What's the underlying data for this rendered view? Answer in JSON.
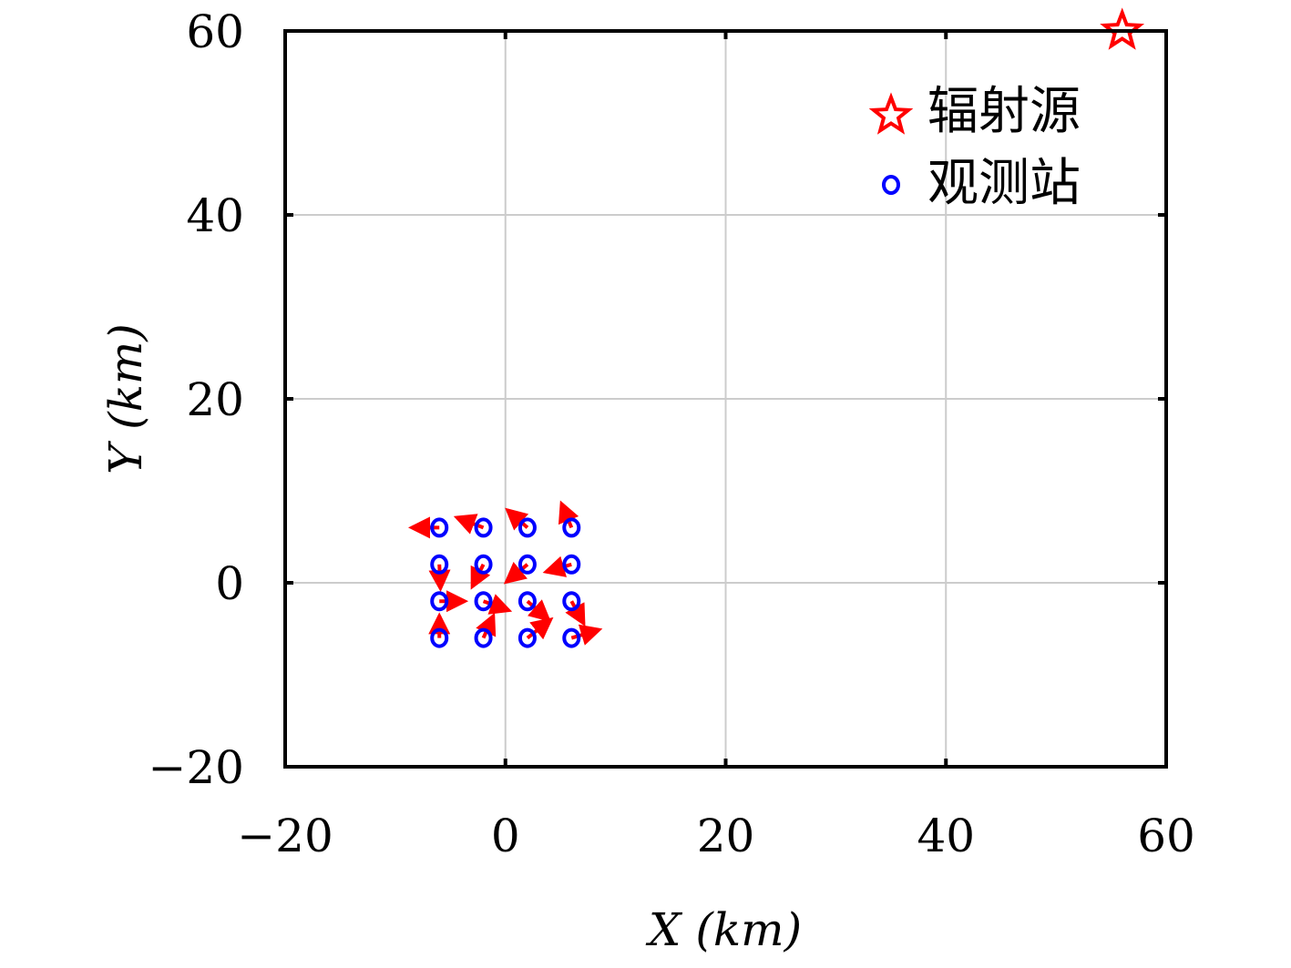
{
  "chart_data": {
    "type": "scatter",
    "title": "",
    "xlabel": "X (km)",
    "ylabel": "Y (km)",
    "xlim": [
      -20,
      60
    ],
    "ylim": [
      -20,
      60
    ],
    "xticks": [
      -20,
      0,
      20,
      40,
      60
    ],
    "yticks": [
      -20,
      0,
      20,
      40,
      60
    ],
    "xtick_labels": [
      "−20",
      "0",
      "20",
      "40",
      "60"
    ],
    "ytick_labels": [
      "−20",
      "0",
      "20",
      "40",
      "60"
    ],
    "grid": true,
    "legend_position": "top-right",
    "series": [
      {
        "name": "辐射源",
        "marker": "star",
        "color": "#ff0000",
        "points": [
          [
            56,
            60
          ]
        ]
      },
      {
        "name": "观测站",
        "marker": "circle",
        "color": "#0000ff",
        "points": [
          [
            -6,
            6
          ],
          [
            -2,
            6
          ],
          [
            2,
            6
          ],
          [
            6,
            6
          ],
          [
            -6,
            2
          ],
          [
            -2,
            2
          ],
          [
            2,
            2
          ],
          [
            6,
            2
          ],
          [
            -6,
            -2
          ],
          [
            -2,
            -2
          ],
          [
            2,
            -2
          ],
          [
            6,
            -2
          ],
          [
            -6,
            -6
          ],
          [
            -2,
            -6
          ],
          [
            2,
            -6
          ],
          [
            6,
            -6
          ]
        ]
      }
    ],
    "velocity_arrows": {
      "color": "#ff0000",
      "vectors": [
        {
          "from": [
            -6,
            6
          ],
          "to": [
            -8.5,
            6
          ]
        },
        {
          "from": [
            -2,
            6
          ],
          "to": [
            -4.4,
            7.1
          ]
        },
        {
          "from": [
            2,
            6
          ],
          "to": [
            0.2,
            7.9
          ]
        },
        {
          "from": [
            6,
            6
          ],
          "to": [
            5.1,
            8.6
          ]
        },
        {
          "from": [
            -6,
            2
          ],
          "to": [
            -5.9,
            -0.6
          ]
        },
        {
          "from": [
            -2,
            2
          ],
          "to": [
            -3.0,
            -0.4
          ]
        },
        {
          "from": [
            2,
            2
          ],
          "to": [
            0.1,
            0.1
          ]
        },
        {
          "from": [
            6,
            2
          ],
          "to": [
            3.7,
            1.2
          ]
        },
        {
          "from": [
            -6,
            -2
          ],
          "to": [
            -3.7,
            -2.0
          ]
        },
        {
          "from": [
            -2,
            -2
          ],
          "to": [
            0.3,
            -3.0
          ]
        },
        {
          "from": [
            2,
            -2
          ],
          "to": [
            3.9,
            -4.0
          ]
        },
        {
          "from": [
            6,
            -2
          ],
          "to": [
            7.1,
            -4.4
          ]
        },
        {
          "from": [
            -6,
            -6
          ],
          "to": [
            -6.0,
            -3.6
          ]
        },
        {
          "from": [
            -2,
            -6
          ],
          "to": [
            -1.1,
            -3.6
          ]
        },
        {
          "from": [
            2,
            -6
          ],
          "to": [
            4.1,
            -4.0
          ]
        },
        {
          "from": [
            6,
            -6
          ],
          "to": [
            8.5,
            -5.1
          ]
        }
      ]
    }
  }
}
